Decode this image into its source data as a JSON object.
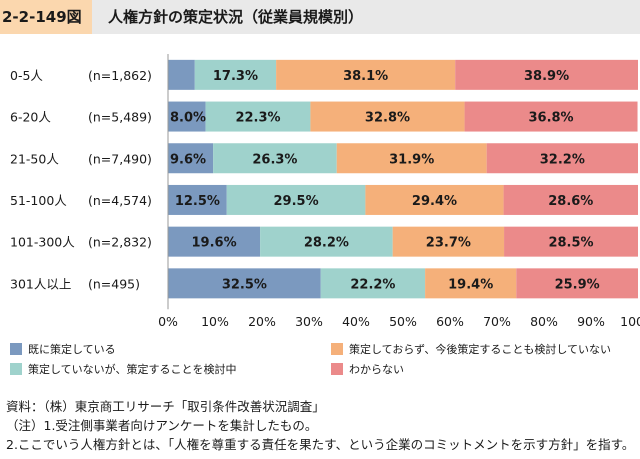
{
  "header": {
    "figure_number": "2-2-149図",
    "title": "人権方針の策定状況（従業員規模別）"
  },
  "colors": {
    "s1": "#7b99bf",
    "s2": "#9fd2cc",
    "s3": "#f5b07a",
    "s4": "#eb8a8a"
  },
  "legend": [
    {
      "label": "既に策定している",
      "color": "#7b99bf"
    },
    {
      "label": "策定しておらず、今後策定することも検討していない",
      "color": "#f5b07a"
    },
    {
      "label": "策定していないが、策定することを検討中",
      "color": "#9fd2cc"
    },
    {
      "label": "わからない",
      "color": "#eb8a8a"
    }
  ],
  "chart_data": {
    "type": "bar",
    "orientation": "horizontal",
    "stacked": "percent",
    "categories": [
      "0-5人",
      "6-20人",
      "21-50人",
      "51-100人",
      "101-300人",
      "301人以上"
    ],
    "sample_sizes": [
      "(n=1,862)",
      "(n=5,489)",
      "(n=7,490)",
      "(n=4,574)",
      "(n=2,832)",
      "(n=495)"
    ],
    "series": [
      {
        "name": "既に策定している",
        "values": [
          5.7,
          8.0,
          9.6,
          12.5,
          19.6,
          32.5
        ],
        "labels": [
          "",
          "8.0%",
          "9.6%",
          "12.5%",
          "19.6%",
          "32.5%"
        ]
      },
      {
        "name": "策定していないが、策定することを検討中",
        "values": [
          17.3,
          22.3,
          26.3,
          29.5,
          28.2,
          22.2
        ],
        "labels": [
          "17.3%",
          "22.3%",
          "26.3%",
          "29.5%",
          "28.2%",
          "22.2%"
        ]
      },
      {
        "name": "策定しておらず、今後策定することも検討していない",
        "values": [
          38.1,
          32.8,
          31.9,
          29.4,
          23.7,
          19.4
        ],
        "labels": [
          "38.1%",
          "32.8%",
          "31.9%",
          "29.4%",
          "23.7%",
          "19.4%"
        ]
      },
      {
        "name": "わからない",
        "values": [
          38.9,
          36.8,
          32.2,
          28.6,
          28.5,
          25.9
        ],
        "labels": [
          "38.9%",
          "36.8%",
          "32.2%",
          "28.6%",
          "28.5%",
          "25.9%"
        ]
      }
    ],
    "xlim": [
      0,
      100
    ],
    "xticks": [
      "0%",
      "10%",
      "20%",
      "30%",
      "40%",
      "50%",
      "60%",
      "70%",
      "80%",
      "90%",
      "100%"
    ],
    "grid": false,
    "legend_position": "bottom"
  },
  "notes": {
    "source": "資料：（株）東京商工リサーチ「取引条件改善状況調査」",
    "note1": "（注）1.受注側事業者向けアンケートを集計したもの。",
    "note2": "2.ここでいう人権方針とは、「人権を尊重する責任を果たす、という企業のコミットメントを示す方針」を指す。"
  }
}
